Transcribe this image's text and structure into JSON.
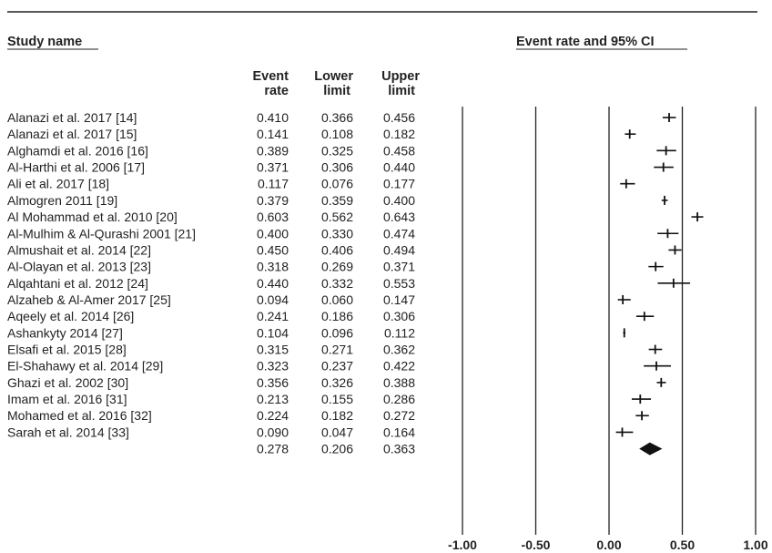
{
  "header": {
    "study_name": "Study name",
    "ci_title": "Event rate and 95% CI",
    "col_rate": [
      "Event",
      "rate"
    ],
    "col_lower": [
      "Lower",
      "limit"
    ],
    "col_upper": [
      "Upper",
      "limit"
    ]
  },
  "chart_data": {
    "type": "forest",
    "xlim": [
      -1.0,
      1.0
    ],
    "xticks": [
      "-1.00",
      "-0.50",
      "0.00",
      "0.50",
      "1.00"
    ],
    "tick_values": [
      -1.0,
      -0.5,
      0.0,
      0.5,
      1.0
    ],
    "grid": true,
    "studies": [
      {
        "name": "Alanazi et al. 2017 [14]",
        "rate": "0.410",
        "lower": "0.366",
        "upper": "0.456"
      },
      {
        "name": "Alanazi et al. 2017 [15]",
        "rate": "0.141",
        "lower": "0.108",
        "upper": "0.182"
      },
      {
        "name": "Alghamdi et al. 2016 [16]",
        "rate": "0.389",
        "lower": "0.325",
        "upper": "0.458"
      },
      {
        "name": "Al-Harthi et al. 2006 [17]",
        "rate": "0.371",
        "lower": "0.306",
        "upper": "0.440"
      },
      {
        "name": "Ali et al. 2017 [18]",
        "rate": "0.117",
        "lower": "0.076",
        "upper": "0.177"
      },
      {
        "name": "Almogren 2011 [19]",
        "rate": "0.379",
        "lower": "0.359",
        "upper": "0.400"
      },
      {
        "name": "Al Mohammad et al. 2010 [20]",
        "rate": "0.603",
        "lower": "0.562",
        "upper": "0.643"
      },
      {
        "name": "Al-Mulhim & Al-Qurashi 2001 [21]",
        "rate": "0.400",
        "lower": "0.330",
        "upper": "0.474"
      },
      {
        "name": "Almushait et al. 2014 [22]",
        "rate": "0.450",
        "lower": "0.406",
        "upper": "0.494"
      },
      {
        "name": "Al-Olayan et al. 2013 [23]",
        "rate": "0.318",
        "lower": "0.269",
        "upper": "0.371"
      },
      {
        "name": "Alqahtani et al. 2012 [24]",
        "rate": "0.440",
        "lower": "0.332",
        "upper": "0.553"
      },
      {
        "name": "Alzaheb & Al-Amer 2017 [25]",
        "rate": "0.094",
        "lower": "0.060",
        "upper": "0.147"
      },
      {
        "name": "Aqeely et al. 2014 [26]",
        "rate": "0.241",
        "lower": "0.186",
        "upper": "0.306"
      },
      {
        "name": "Ashankyty 2014 [27]",
        "rate": "0.104",
        "lower": "0.096",
        "upper": "0.112"
      },
      {
        "name": "Elsafi et al. 2015 [28]",
        "rate": "0.315",
        "lower": "0.271",
        "upper": "0.362"
      },
      {
        "name": "El-Shahawy et al. 2014 [29]",
        "rate": "0.323",
        "lower": "0.237",
        "upper": "0.422"
      },
      {
        "name": "Ghazi et al. 2002 [30]",
        "rate": "0.356",
        "lower": "0.326",
        "upper": "0.388"
      },
      {
        "name": "Imam et al. 2016 [31]",
        "rate": "0.213",
        "lower": "0.155",
        "upper": "0.286"
      },
      {
        "name": "Mohamed et al. 2016 [32]",
        "rate": "0.224",
        "lower": "0.182",
        "upper": "0.272"
      },
      {
        "name": "Sarah et al. 2014 [33]",
        "rate": "0.090",
        "lower": "0.047",
        "upper": "0.164"
      }
    ],
    "summary": {
      "rate": "0.278",
      "lower": "0.206",
      "upper": "0.363"
    }
  }
}
